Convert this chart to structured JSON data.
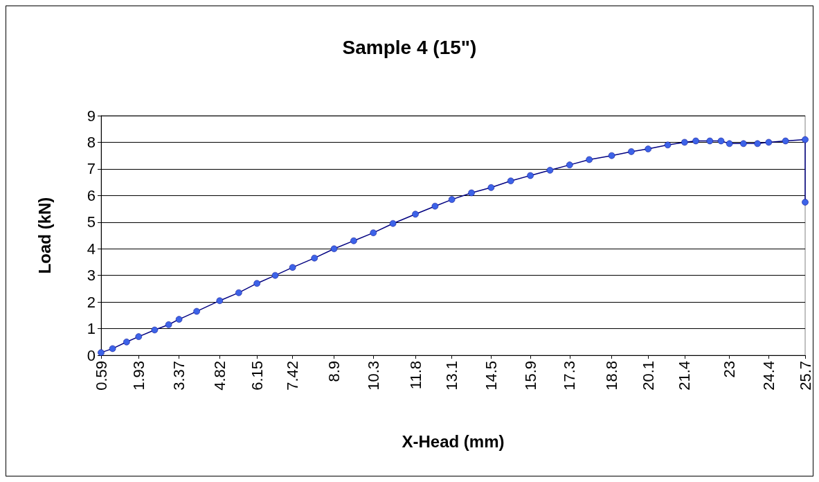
{
  "chart_data": {
    "type": "line",
    "title": "Sample 4 (15\")",
    "xlabel": "X-Head (mm)",
    "ylabel": "Load (kN)",
    "x": [
      0.59,
      1.0,
      1.5,
      1.93,
      2.5,
      3.0,
      3.37,
      4.0,
      4.82,
      5.5,
      6.15,
      6.8,
      7.42,
      8.2,
      8.9,
      9.6,
      10.3,
      11.0,
      11.8,
      12.5,
      13.1,
      13.8,
      14.5,
      15.2,
      15.9,
      16.6,
      17.3,
      18.0,
      18.8,
      19.5,
      20.1,
      20.8,
      21.4,
      21.8,
      22.3,
      22.7,
      23.0,
      23.5,
      24.0,
      24.4,
      25.0,
      25.7,
      25.7
    ],
    "series": [
      {
        "color": "#3d63e8",
        "values": [
          0.1,
          0.25,
          0.5,
          0.7,
          0.95,
          1.15,
          1.35,
          1.65,
          2.05,
          2.35,
          2.7,
          3.0,
          3.3,
          3.65,
          4.0,
          4.3,
          4.6,
          4.95,
          5.3,
          5.6,
          5.85,
          6.1,
          6.3,
          6.55,
          6.75,
          6.95,
          7.15,
          7.35,
          7.5,
          7.65,
          7.75,
          7.9,
          8.0,
          8.05,
          8.05,
          8.05,
          7.95,
          7.95,
          7.95,
          8.0,
          8.05,
          8.1,
          5.75
        ]
      }
    ],
    "xlim": [
      0.59,
      25.7
    ],
    "xticks": [
      0.59,
      1.93,
      3.37,
      4.82,
      6.15,
      7.42,
      8.9,
      10.3,
      11.8,
      13.1,
      14.5,
      15.9,
      17.3,
      18.8,
      20.1,
      21.4,
      23,
      24.4,
      25.7
    ],
    "ylim": [
      0,
      9
    ],
    "yticks": [
      0,
      1,
      2,
      3,
      4,
      5,
      6,
      7,
      8,
      9
    ],
    "grid": "y",
    "marker": "circle"
  }
}
